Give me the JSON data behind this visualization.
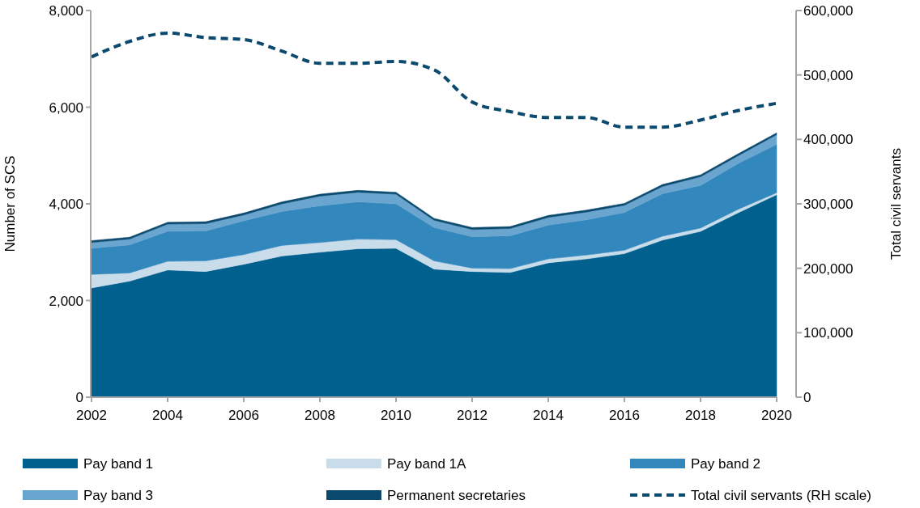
{
  "chart_data": {
    "type": "area",
    "stacked": true,
    "x": [
      2002,
      2003,
      2004,
      2005,
      2006,
      2007,
      2008,
      2009,
      2010,
      2011,
      2012,
      2013,
      2014,
      2015,
      2016,
      2017,
      2018,
      2019,
      2020
    ],
    "xlim": [
      2002,
      2020
    ],
    "xticks": [
      2002,
      2004,
      2006,
      2008,
      2010,
      2012,
      2014,
      2016,
      2018,
      2020
    ],
    "ylabel": "Number of SCS",
    "y2label": "Total civil servants",
    "ylim": [
      0,
      8000
    ],
    "yticks": [
      0,
      {
        "value": 2000,
        "label": "2,000"
      },
      {
        "value": 4000,
        "label": "4,000"
      },
      {
        "value": 6000,
        "label": "6,000"
      },
      {
        "value": 8000,
        "label": "8,000"
      }
    ],
    "y2lim": [
      0,
      600000
    ],
    "y2ticks": [
      0,
      {
        "value": 100000,
        "label": "100,000"
      },
      {
        "value": 200000,
        "label": "200,000"
      },
      {
        "value": 300000,
        "label": "300,000"
      },
      {
        "value": 400000,
        "label": "400,000"
      },
      {
        "value": 500000,
        "label": "500,000"
      },
      {
        "value": 600000,
        "label": "600,000"
      }
    ],
    "legend": "bottom",
    "grid": false,
    "series": [
      {
        "name": "Pay band 1",
        "color": "#02608f",
        "values": [
          2260,
          2400,
          2630,
          2600,
          2750,
          2920,
          3000,
          3070,
          3080,
          2650,
          2600,
          2580,
          2780,
          2860,
          2970,
          3250,
          3430,
          3820,
          4190
        ]
      },
      {
        "name": "Pay band 1A",
        "color": "#c9dcea",
        "values": [
          280,
          170,
          180,
          220,
          200,
          220,
          200,
          200,
          180,
          170,
          70,
          80,
          80,
          80,
          70,
          80,
          70,
          70,
          40
        ]
      },
      {
        "name": "Pay band 2",
        "color": "#3287bd",
        "values": [
          540,
          580,
          620,
          620,
          700,
          700,
          760,
          770,
          740,
          690,
          650,
          680,
          700,
          730,
          780,
          880,
          880,
          950,
          1000
        ]
      },
      {
        "name": "Pay band 3",
        "color": "#6aa5cf",
        "values": [
          120,
          120,
          150,
          150,
          120,
          160,
          200,
          200,
          200,
          150,
          150,
          150,
          160,
          160,
          150,
          150,
          180,
          160,
          200
        ]
      },
      {
        "name": "Permanent secretaries",
        "color": "#0b4a6e",
        "values": [
          40,
          40,
          40,
          40,
          40,
          40,
          40,
          40,
          40,
          40,
          40,
          40,
          40,
          40,
          40,
          40,
          40,
          40,
          40
        ]
      },
      {
        "name": "Total civil servants (RH scale)",
        "type": "line",
        "axis": "y2",
        "line_style": "dashed",
        "color": "#0b4a6e",
        "values": [
          528000,
          552000,
          565000,
          558000,
          555000,
          537000,
          518000,
          518000,
          521000,
          508000,
          458000,
          443000,
          434000,
          434000,
          419000,
          419000,
          430000,
          445000,
          456000
        ]
      }
    ]
  }
}
